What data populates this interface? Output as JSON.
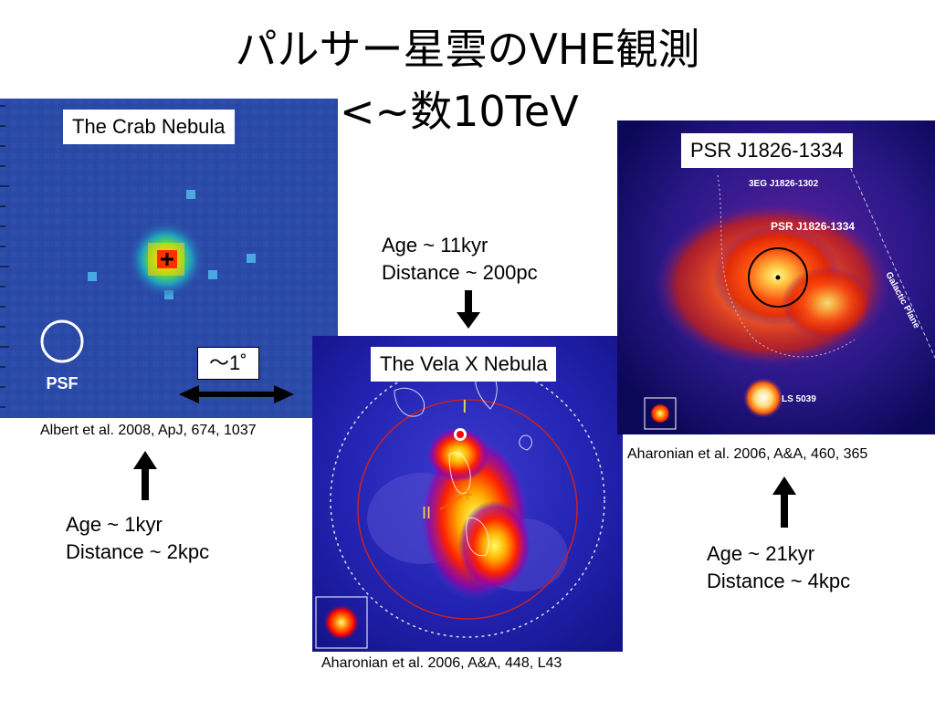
{
  "slide": {
    "title": "パルサー星雲のVHE観測",
    "subtitle": "<~数10TeV"
  },
  "crab": {
    "label": "The Crab Nebula",
    "psf_label": "PSF",
    "citation": "Albert et al. 2008, ApJ, 674, 1037",
    "age": "Age ~ 1kyr",
    "distance": "Distance ~ 2kpc"
  },
  "scale": {
    "label": "～1˚"
  },
  "vela": {
    "label": "The Vela X Nebula",
    "marker_one": "I",
    "marker_two": "II",
    "citation": "Aharonian et al. 2006, A&A, 448, L43",
    "age": "Age ~ 11kyr",
    "distance": "Distance ~ 200pc"
  },
  "psr": {
    "label": "PSR J1826-1334",
    "source_3eg": "3EG J1826-1302",
    "source_psr": "PSR J1826-1334",
    "galactic_plane": "Galactic Plane",
    "source_ls": "LS 5039",
    "citation": "Aharonian et al. 2006, A&A, 460, 365",
    "age": "Age ~ 21kyr",
    "distance": "Distance ~ 4kpc"
  },
  "colors": {
    "crab_background": "#2b4aa8",
    "vela_background": "#1a1a9a",
    "psr_background": "#14106a"
  }
}
